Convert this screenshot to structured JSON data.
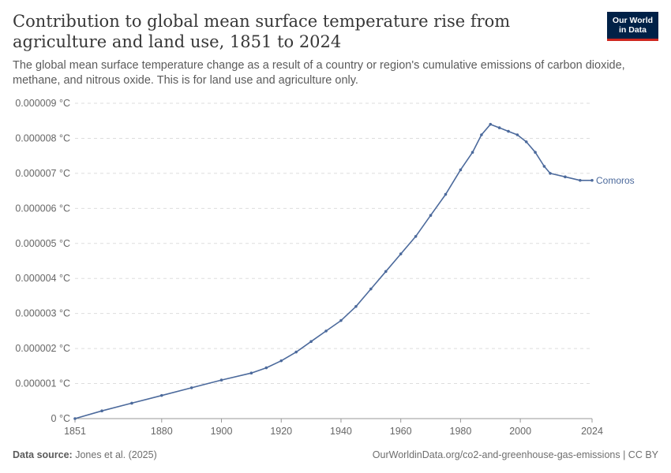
{
  "header": {
    "title": "Contribution to global mean surface temperature rise from agriculture and land use, 1851 to 2024",
    "subtitle": "The global mean surface temperature change as a result of a country or region's cumulative emissions of carbon dioxide, methane, and nitrous oxide. This is for land use and agriculture only.",
    "logo_line1": "Our World",
    "logo_line2": "in Data"
  },
  "footer": {
    "source_label": "Data source:",
    "source_text": "Jones et al. (2025)",
    "url_text": "OurWorldinData.org/co2-and-greenhouse-gas-emissions | CC BY"
  },
  "colors": {
    "series": "#4c6a9c",
    "grid": "#dddddd",
    "axis_text": "#666666"
  },
  "chart_data": {
    "type": "line",
    "title": "Contribution to global mean surface temperature rise from agriculture and land use, 1851 to 2024",
    "xlim": [
      1851,
      2024
    ],
    "ylim": [
      0,
      9e-06
    ],
    "x_ticks": [
      1851,
      1880,
      1900,
      1920,
      1940,
      1960,
      1980,
      2000,
      2024
    ],
    "y_ticks": [
      0,
      1e-06,
      2e-06,
      3e-06,
      4e-06,
      5e-06,
      6e-06,
      7e-06,
      8e-06,
      9e-06
    ],
    "y_tick_labels": [
      "0 °C",
      "0.000001 °C",
      "0.000002 °C",
      "0.000003 °C",
      "0.000004 °C",
      "0.000005 °C",
      "0.000006 °C",
      "0.000007 °C",
      "0.000008 °C",
      "0.000009 °C"
    ],
    "grid": true,
    "series": [
      {
        "name": "Comoros",
        "x": [
          1851,
          1860,
          1870,
          1880,
          1890,
          1900,
          1910,
          1915,
          1920,
          1925,
          1930,
          1935,
          1940,
          1945,
          1950,
          1955,
          1960,
          1965,
          1970,
          1975,
          1980,
          1984,
          1987,
          1990,
          1993,
          1996,
          1999,
          2002,
          2005,
          2008,
          2010,
          2015,
          2020,
          2024
        ],
        "y": [
          0,
          2.2e-07,
          4.4e-07,
          6.6e-07,
          8.8e-07,
          1.1e-06,
          1.3e-06,
          1.45e-06,
          1.65e-06,
          1.9e-06,
          2.2e-06,
          2.5e-06,
          2.8e-06,
          3.2e-06,
          3.7e-06,
          4.2e-06,
          4.7e-06,
          5.2e-06,
          5.8e-06,
          6.4e-06,
          7.1e-06,
          7.6e-06,
          8.1e-06,
          8.4e-06,
          8.3e-06,
          8.2e-06,
          8.1e-06,
          7.9e-06,
          7.6e-06,
          7.2e-06,
          7e-06,
          6.9e-06,
          6.8e-06,
          6.8e-06
        ]
      }
    ]
  }
}
